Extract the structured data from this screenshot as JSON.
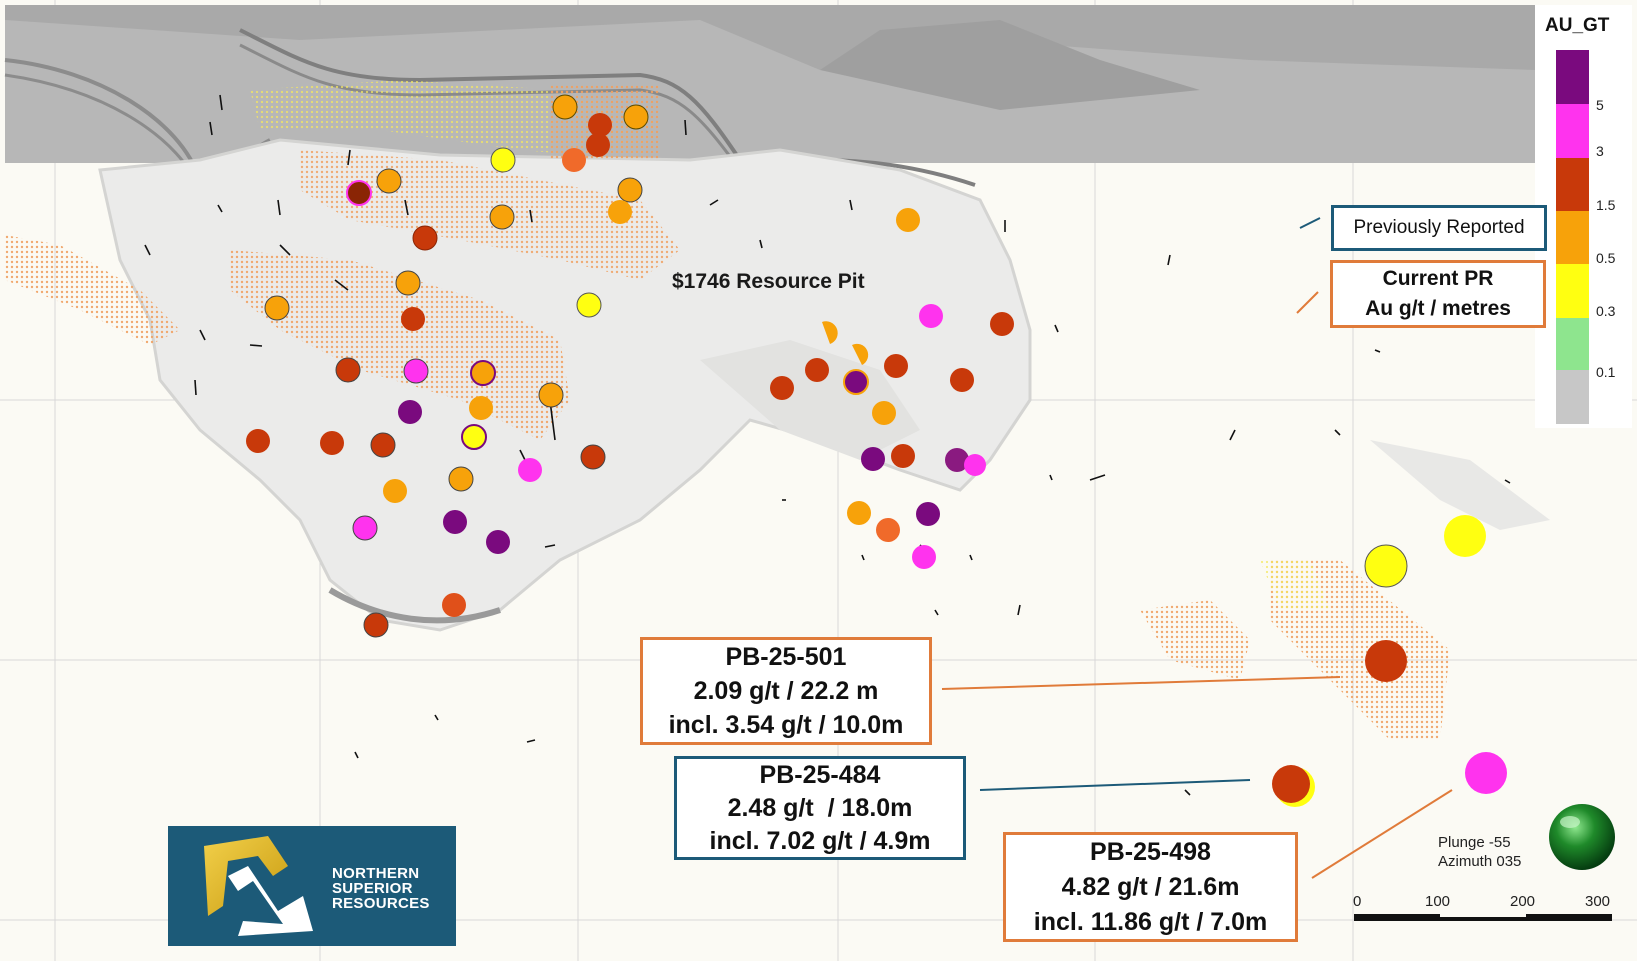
{
  "scale_legend": {
    "title": "AU_GT",
    "bins": [
      {
        "label": "5",
        "color": "#7a0a7e"
      },
      {
        "label": "3",
        "color": "#ff33ee"
      },
      {
        "label": "1.5",
        "color": "#c8390a"
      },
      {
        "label": "0.5",
        "color": "#f7a20a"
      },
      {
        "label": "0.3",
        "color": "#ffff11"
      },
      {
        "label": "0.1",
        "color": "#8ee58e"
      },
      {
        "label": "",
        "color": "#c7c7c7"
      }
    ]
  },
  "legend": {
    "previously_reported": "Previously Reported",
    "current_line1": "Current PR",
    "current_line2": "Au g/t / metres"
  },
  "pit_label": "$1746 Resource Pit",
  "callouts": {
    "pb501": {
      "hole": "PB-25-501",
      "grade": "2.09 g/t / 22.2 m",
      "incl": "incl. 3.54 g/t / 10.0m"
    },
    "pb484": {
      "hole": "PB-25-484",
      "grade": "2.48 g/t  / 18.0m",
      "incl": "incl. 7.02 g/t / 4.9m"
    },
    "pb498": {
      "hole": "PB-25-498",
      "grade": "4.82 g/t / 21.6m",
      "incl": "incl. 11.86 g/t / 7.0m"
    }
  },
  "orientation": {
    "plunge": "Plunge -55",
    "azimuth": "Azimuth 035"
  },
  "scale_bar": {
    "labels": [
      "0",
      "100",
      "200",
      "300"
    ]
  },
  "logo": {
    "line1": "NORTHERN",
    "line2": "SUPERIOR",
    "line3": "RESOURCES"
  },
  "colors": {
    "orange_callout": "#e07b3a",
    "blue_callout": "#1c5a78",
    "brand_blue": "#1c5a78",
    "logo_gold": "#e8b820"
  }
}
